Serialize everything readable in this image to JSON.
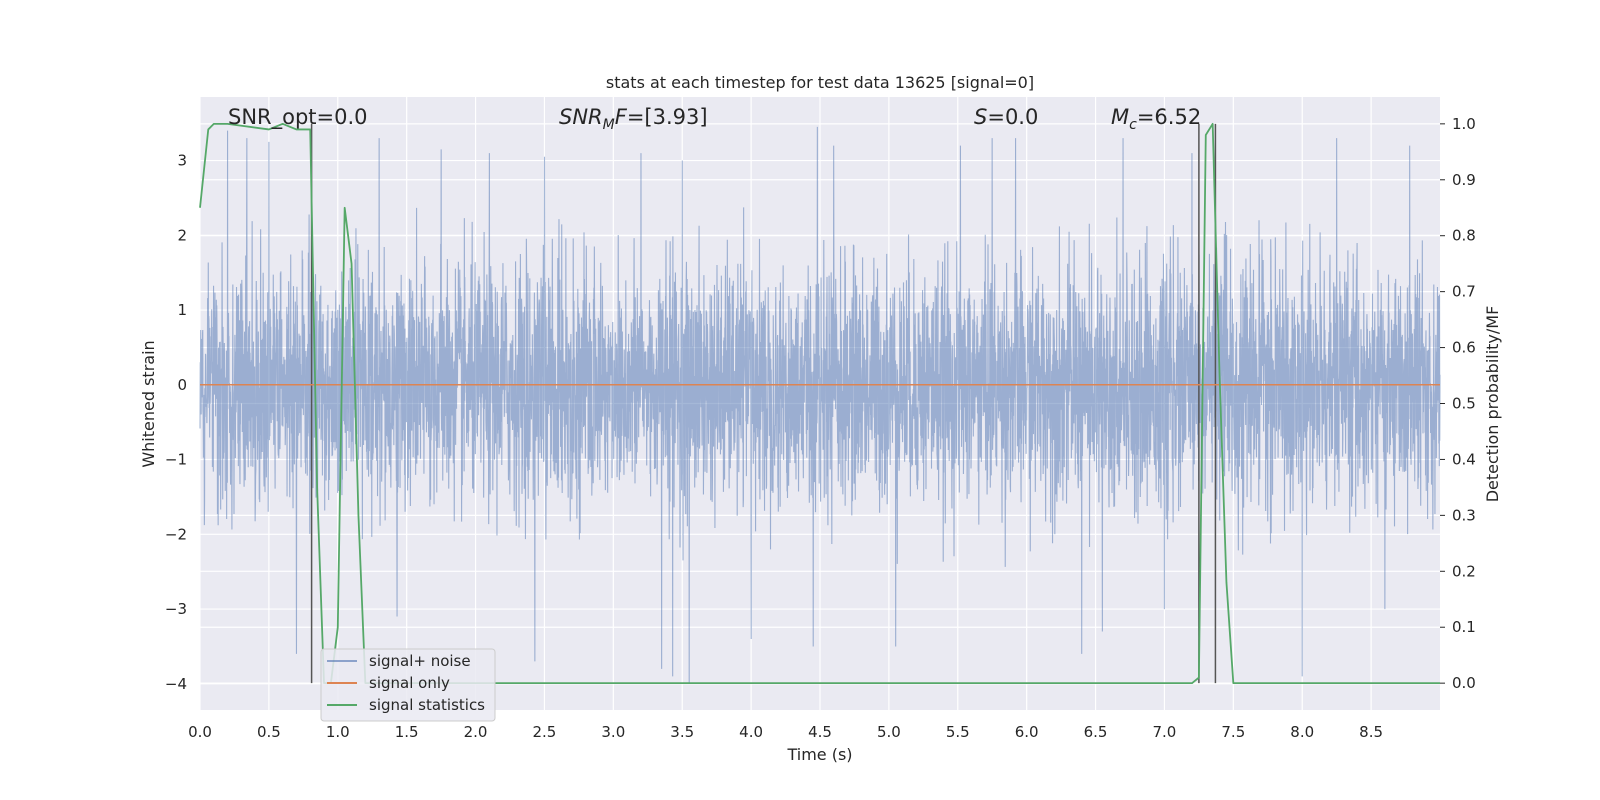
{
  "chart_data": {
    "type": "line",
    "title": "stats at each timestep for test data 13625 [signal=0]",
    "xlabel": "Time (s)",
    "ylabel": "Whitened strain",
    "ylabel_right": "Detection probability/MF",
    "xlim": [
      0.0,
      9.0
    ],
    "ylim": [
      -4.35,
      3.85
    ],
    "ylim_right": [
      -0.048,
      1.048
    ],
    "x_ticks": [
      0.0,
      0.5,
      1.0,
      1.5,
      2.0,
      2.5,
      3.0,
      3.5,
      4.0,
      4.5,
      5.0,
      5.5,
      6.0,
      6.5,
      7.0,
      7.5,
      8.0,
      8.5
    ],
    "x_tick_labels": [
      "0.0",
      "0.5",
      "1.0",
      "1.5",
      "2.0",
      "2.5",
      "3.0",
      "3.5",
      "4.0",
      "4.5",
      "5.0",
      "5.5",
      "6.0",
      "6.5",
      "7.0",
      "7.5",
      "8.0",
      "8.5"
    ],
    "y_ticks": [
      -4,
      -3,
      -2,
      -1,
      0,
      1,
      2,
      3
    ],
    "y_tick_labels": [
      "−4",
      "−3",
      "−2",
      "−1",
      "0",
      "1",
      "2",
      "3"
    ],
    "y_ticks_right": [
      0.0,
      0.1,
      0.2,
      0.3,
      0.4,
      0.5,
      0.6,
      0.7,
      0.8,
      0.9,
      1.0
    ],
    "y_tick_labels_right": [
      "0.0",
      "0.1",
      "0.2",
      "0.3",
      "0.4",
      "0.5",
      "0.6",
      "0.7",
      "0.8",
      "0.9",
      "1.0"
    ],
    "grid": true,
    "legend_position": "lower-left",
    "annotations": [
      {
        "text": "SNR_opt=0.0",
        "x": 0.2
      },
      {
        "text": "SNR_MF=[3.93]",
        "x": 2.6
      },
      {
        "text": "S=0.0",
        "x": 5.6
      },
      {
        "text": "M_c=6.52",
        "x": 6.6
      }
    ],
    "vertical_lines": [
      {
        "x": 0.81,
        "y_right": [
          0.0,
          1.0
        ]
      },
      {
        "x": 7.25,
        "y_right": [
          0.0,
          1.0
        ]
      },
      {
        "x": 7.37,
        "y_right": [
          0.0,
          1.0
        ]
      }
    ],
    "series": [
      {
        "name": "signal+ noise",
        "axis": "left",
        "color": "#4c72b0",
        "opacity": 0.5,
        "description": "dense whitened noise, ~6 samples per 0.01 s",
        "envelope_upper": [
          2.2,
          2.4,
          2.7,
          3.3,
          2.6,
          2.4,
          3.0,
          2.2,
          2.5,
          2.6,
          2.3,
          2.9,
          2.5,
          2.7,
          2.3,
          2.2,
          2.9,
          2.5,
          2.8,
          2.6
        ],
        "envelope_lower": [
          -2.0,
          -2.6,
          -2.2,
          -2.8,
          -2.3,
          -2.1,
          -2.6,
          -3.0,
          -2.4,
          -2.9,
          -2.2,
          -2.5,
          -2.8,
          -2.3,
          -3.1,
          -2.4,
          -2.6,
          -2.2,
          -2.5,
          -2.3
        ],
        "extremes": [
          {
            "x": 0.2,
            "y": 3.4
          },
          {
            "x": 0.34,
            "y": 3.3
          },
          {
            "x": 0.5,
            "y": 3.25
          },
          {
            "x": 0.7,
            "y": -3.6
          },
          {
            "x": 1.3,
            "y": 3.3
          },
          {
            "x": 1.43,
            "y": -3.1
          },
          {
            "x": 1.75,
            "y": 3.15
          },
          {
            "x": 2.1,
            "y": 3.1
          },
          {
            "x": 2.43,
            "y": -3.7
          },
          {
            "x": 2.5,
            "y": 3.05
          },
          {
            "x": 3.2,
            "y": 3.1
          },
          {
            "x": 3.35,
            "y": -3.8
          },
          {
            "x": 3.43,
            "y": -3.9
          },
          {
            "x": 3.5,
            "y": 3.0
          },
          {
            "x": 3.55,
            "y": -4.0
          },
          {
            "x": 4.0,
            "y": -3.4
          },
          {
            "x": 4.48,
            "y": 3.45
          },
          {
            "x": 4.45,
            "y": -3.5
          },
          {
            "x": 4.6,
            "y": 3.2
          },
          {
            "x": 5.05,
            "y": -3.5
          },
          {
            "x": 5.52,
            "y": 3.2
          },
          {
            "x": 5.75,
            "y": 3.3
          },
          {
            "x": 5.92,
            "y": 3.3
          },
          {
            "x": 6.4,
            "y": -3.6
          },
          {
            "x": 6.55,
            "y": -3.3
          },
          {
            "x": 6.7,
            "y": 3.3
          },
          {
            "x": 7.0,
            "y": -3.0
          },
          {
            "x": 7.2,
            "y": 3.1
          },
          {
            "x": 8.0,
            "y": -3.9
          },
          {
            "x": 8.25,
            "y": 3.3
          },
          {
            "x": 8.6,
            "y": -3.0
          },
          {
            "x": 8.78,
            "y": 3.2
          }
        ]
      },
      {
        "name": "signal only",
        "axis": "left",
        "color": "#dd8452",
        "x": [
          0.0,
          9.0
        ],
        "y": [
          0.0,
          0.0
        ]
      },
      {
        "name": "signal statistics",
        "axis": "right",
        "color": "#55a868",
        "x": [
          0.0,
          0.06,
          0.1,
          0.2,
          0.5,
          0.6,
          0.7,
          0.8,
          0.85,
          0.9,
          0.95,
          1.0,
          1.05,
          1.1,
          1.15,
          1.2,
          1.25,
          1.3,
          7.2,
          7.25,
          7.3,
          7.35,
          7.4,
          7.45,
          7.5,
          9.0
        ],
        "y": [
          0.85,
          0.99,
          1.0,
          1.0,
          0.99,
          1.0,
          0.99,
          0.99,
          0.35,
          0.0,
          0.0,
          0.1,
          0.85,
          0.75,
          0.3,
          0.0,
          0.0,
          0.0,
          0.0,
          0.01,
          0.98,
          1.0,
          0.55,
          0.18,
          0.0,
          0.0
        ]
      }
    ]
  }
}
